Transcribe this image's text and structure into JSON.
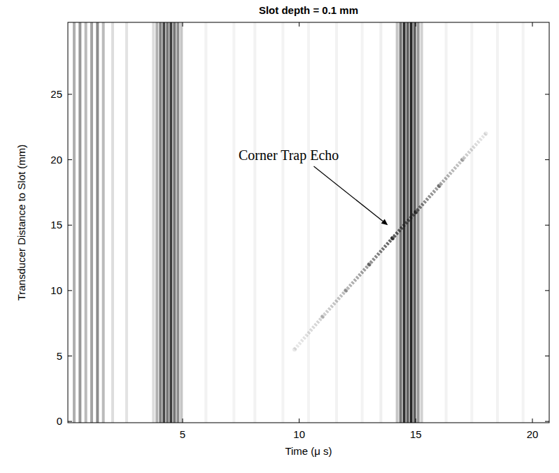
{
  "chart_data": {
    "type": "bscan",
    "title": "Slot depth = 0.1 mm",
    "x_label": "Time (μ s)",
    "y_label": "Transducer Distance to Slot (mm)",
    "xlim": [
      0.08,
      20.72
    ],
    "ylim": [
      -0.1,
      30.5
    ],
    "xticks": [
      5,
      10,
      15,
      20
    ],
    "yticks": [
      0,
      5,
      10,
      15,
      20,
      25
    ],
    "color": "#1a1a1a",
    "bands": [
      {
        "x": 0.35,
        "darkness": 0.35
      },
      {
        "x": 0.6,
        "darkness": 0.45
      },
      {
        "x": 0.85,
        "darkness": 0.3
      },
      {
        "x": 1.1,
        "darkness": 0.4
      },
      {
        "x": 1.35,
        "darkness": 0.5
      },
      {
        "x": 1.6,
        "darkness": 0.3
      },
      {
        "x": 2.0,
        "darkness": 0.15
      },
      {
        "x": 2.6,
        "darkness": 0.12
      },
      {
        "x": 3.75,
        "darkness": 0.15
      },
      {
        "x": 3.9,
        "darkness": 0.35
      },
      {
        "x": 4.05,
        "darkness": 0.55
      },
      {
        "x": 4.2,
        "darkness": 0.8
      },
      {
        "x": 4.35,
        "darkness": 0.6
      },
      {
        "x": 4.5,
        "darkness": 0.85
      },
      {
        "x": 4.65,
        "darkness": 0.6
      },
      {
        "x": 4.8,
        "darkness": 0.5
      },
      {
        "x": 4.95,
        "darkness": 0.25
      },
      {
        "x": 6.0,
        "darkness": 0.06
      },
      {
        "x": 7.2,
        "darkness": 0.05
      },
      {
        "x": 8.1,
        "darkness": 0.06
      },
      {
        "x": 9.3,
        "darkness": 0.05
      },
      {
        "x": 10.4,
        "darkness": 0.05
      },
      {
        "x": 11.6,
        "darkness": 0.06
      },
      {
        "x": 12.7,
        "darkness": 0.05
      },
      {
        "x": 13.5,
        "darkness": 0.07
      },
      {
        "x": 14.2,
        "darkness": 0.25
      },
      {
        "x": 14.35,
        "darkness": 0.6
      },
      {
        "x": 14.5,
        "darkness": 0.9
      },
      {
        "x": 14.65,
        "darkness": 0.7
      },
      {
        "x": 14.8,
        "darkness": 0.95
      },
      {
        "x": 14.95,
        "darkness": 0.7
      },
      {
        "x": 15.1,
        "darkness": 0.45
      },
      {
        "x": 15.25,
        "darkness": 0.2
      },
      {
        "x": 16.3,
        "darkness": 0.06
      },
      {
        "x": 17.4,
        "darkness": 0.05
      },
      {
        "x": 18.5,
        "darkness": 0.06
      },
      {
        "x": 19.6,
        "darkness": 0.05
      }
    ],
    "echo": {
      "x": [
        9.8,
        11,
        12,
        13,
        14,
        15,
        16,
        17,
        18
      ],
      "y": [
        5.5,
        8,
        10,
        12,
        14,
        16,
        18,
        20,
        22
      ],
      "darkness": [
        0.1,
        0.2,
        0.3,
        0.45,
        0.7,
        0.6,
        0.4,
        0.25,
        0.1
      ]
    },
    "annotation": {
      "text": "Corner Trap Echo",
      "x": 9.55,
      "y": 20.35,
      "target_x": 13.8,
      "target_y": 15.0
    }
  }
}
